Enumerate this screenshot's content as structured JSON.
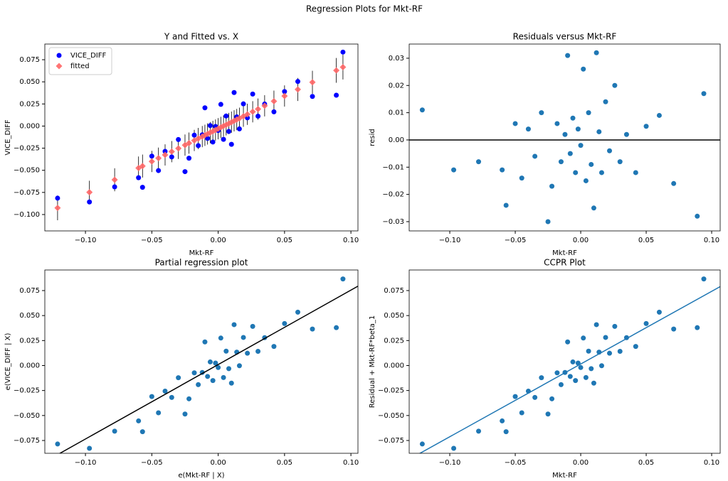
{
  "title": "Regression Plots for Mkt-RF",
  "chart_data": [
    {
      "type": "scatter",
      "title": "Y and Fitted vs. X",
      "x_label": "Mkt-RF",
      "y_label": "VICE_DIFF",
      "legend": "upper left",
      "xlim": [
        -0.1306,
        0.1053
      ],
      "ylim": [
        -0.1185,
        0.0927
      ],
      "xticks": [
        {
          "value": -0.1,
          "label": "−0.10"
        },
        {
          "value": -0.05,
          "label": "−0.05"
        },
        {
          "value": 0,
          "label": "0.00"
        },
        0.05,
        {
          "value": 0.1,
          "label": "0.10"
        }
      ],
      "yticks": [
        {
          "value": -0.1,
          "label": "−0.100"
        },
        {
          "value": -0.075,
          "label": "−0.075"
        },
        {
          "value": -0.05,
          "label": "−0.050"
        },
        {
          "value": -0.025,
          "label": "−0.025"
        },
        {
          "value": 0,
          "label": "0.000"
        },
        0.025,
        {
          "value": 0.05,
          "label": "0.050"
        },
        0.075
      ],
      "x": [
        -0.121,
        -0.097,
        -0.078,
        -0.06,
        -0.057,
        -0.05,
        -0.045,
        -0.04,
        -0.035,
        -0.03,
        -0.025,
        -0.022,
        -0.018,
        -0.015,
        -0.012,
        -0.01,
        -0.008,
        -0.006,
        -0.004,
        -0.002,
        0,
        0.002,
        0.004,
        0.006,
        0.008,
        0.01,
        0.012,
        0.014,
        0.016,
        0.019,
        0.022,
        0.026,
        0.03,
        0.035,
        0.042,
        0.05,
        0.06,
        0.071,
        0.089,
        0.094
      ],
      "series": [
        {
          "name": "VICE_DIFF",
          "color": "#0000ff",
          "marker": "circle",
          "values": [
            -0.0815,
            -0.0858,
            -0.0687,
            -0.0584,
            -0.0692,
            -0.034,
            -0.0503,
            -0.0286,
            -0.0349,
            -0.0152,
            -0.0515,
            -0.0363,
            -0.0103,
            -0.0221,
            -0.0099,
            0.0206,
            -0.0139,
            0.0006,
            -0.018,
            -0.0005,
            -0.005,
            0.0245,
            -0.015,
            0.0114,
            -0.0061,
            -0.0206,
            0.0379,
            0.0104,
            -0.0032,
            0.0251,
            0.0093,
            0.0362,
            0.0112,
            0.0249,
            0.0161,
            0.039,
            0.0504,
            0.0335,
            0.0349,
            0.0836
          ]
        },
        {
          "name": "fitted",
          "color": "#ff6666",
          "marker": "diamond",
          "values": [
            -0.0925,
            -0.0748,
            -0.0607,
            -0.0474,
            -0.0452,
            -0.04,
            -0.0363,
            -0.0326,
            -0.0289,
            -0.0252,
            -0.0215,
            -0.0193,
            -0.0163,
            -0.0141,
            -0.0119,
            -0.0104,
            -0.0089,
            -0.0074,
            -0.006,
            -0.0045,
            -0.003,
            -0.0015,
            0,
            0.0014,
            0.0029,
            0.0044,
            0.0059,
            0.0074,
            0.0088,
            0.0111,
            0.0133,
            0.0162,
            0.0192,
            0.0229,
            0.0281,
            0.034,
            0.0414,
            0.0495,
            0.0629,
            0.0666
          ],
          "errors": [
            0.014,
            0.013,
            0.013,
            0.013,
            0.013,
            0.012,
            0.012,
            0.012,
            0.012,
            0.012,
            0.012,
            0.012,
            0.012,
            0.012,
            0.012,
            0.012,
            0.012,
            0.012,
            0.012,
            0.012,
            0.012,
            0.012,
            0.012,
            0.012,
            0.012,
            0.012,
            0.012,
            0.012,
            0.012,
            0.012,
            0.012,
            0.012,
            0.012,
            0.012,
            0.012,
            0.012,
            0.013,
            0.013,
            0.014,
            0.014
          ]
        }
      ]
    },
    {
      "type": "scatter",
      "title": "Residuals versus Mkt-RF",
      "x_label": "Mkt-RF",
      "y_label": "resid",
      "hline": 0,
      "xlim": [
        -0.131,
        0.1065
      ],
      "ylim": [
        -0.0334,
        0.0352
      ],
      "xticks": [
        {
          "value": -0.1,
          "label": "−0.10"
        },
        {
          "value": -0.05,
          "label": "−0.05"
        },
        {
          "value": 0,
          "label": "0.00"
        },
        0.05,
        {
          "value": 0.1,
          "label": "0.10"
        }
      ],
      "yticks": [
        {
          "value": -0.03,
          "label": "−0.03"
        },
        {
          "value": -0.02,
          "label": "−0.02"
        },
        {
          "value": -0.01,
          "label": "−0.01"
        },
        {
          "value": 0,
          "label": "0.00"
        },
        0.01,
        0.02,
        0.03
      ],
      "x": [
        -0.121,
        -0.097,
        -0.078,
        -0.06,
        -0.057,
        -0.05,
        -0.045,
        -0.04,
        -0.035,
        -0.03,
        -0.025,
        -0.022,
        -0.018,
        -0.015,
        -0.012,
        -0.01,
        -0.008,
        -0.006,
        -0.004,
        -0.002,
        0,
        0.002,
        0.004,
        0.006,
        0.008,
        0.01,
        0.012,
        0.014,
        0.016,
        0.019,
        0.022,
        0.026,
        0.03,
        0.035,
        0.042,
        0.05,
        0.06,
        0.071,
        0.089,
        0.094
      ],
      "series": [
        {
          "color": "#1f77b4",
          "marker": "circle",
          "values": [
            0.011,
            -0.011,
            -0.008,
            -0.011,
            -0.024,
            0.006,
            -0.014,
            0.004,
            -0.006,
            0.01,
            -0.03,
            -0.017,
            0.006,
            -0.008,
            0.002,
            0.031,
            -0.005,
            0.008,
            -0.012,
            0.004,
            -0.002,
            0.026,
            -0.015,
            0.01,
            -0.009,
            -0.025,
            0.032,
            0.003,
            -0.012,
            0.014,
            -0.004,
            0.02,
            -0.008,
            0.002,
            -0.012,
            0.005,
            0.009,
            -0.016,
            -0.028,
            0.017
          ]
        }
      ]
    },
    {
      "type": "scatter",
      "title": "Partial regression plot",
      "x_label": "e(Mkt-RF | X)",
      "y_label": "e(VICE_DIFF | X)",
      "xlim": [
        -0.1306,
        0.1053
      ],
      "ylim": [
        -0.0878,
        0.0956
      ],
      "xticks": [
        {
          "value": -0.1,
          "label": "−0.10"
        },
        {
          "value": -0.05,
          "label": "−0.05"
        },
        {
          "value": 0,
          "label": "0.00"
        },
        0.05,
        {
          "value": 0.1,
          "label": "0.10"
        }
      ],
      "yticks": [
        {
          "value": -0.075,
          "label": "−0.075"
        },
        {
          "value": -0.05,
          "label": "−0.050"
        },
        {
          "value": -0.025,
          "label": "−0.025"
        },
        {
          "value": 0,
          "label": "0.000"
        },
        0.025,
        {
          "value": 0.05,
          "label": "0.050"
        },
        0.075
      ],
      "x": [
        -0.121,
        -0.097,
        -0.078,
        -0.06,
        -0.057,
        -0.05,
        -0.045,
        -0.04,
        -0.035,
        -0.03,
        -0.025,
        -0.022,
        -0.018,
        -0.015,
        -0.012,
        -0.01,
        -0.008,
        -0.006,
        -0.004,
        -0.002,
        0,
        0.002,
        0.004,
        0.006,
        0.008,
        0.01,
        0.012,
        0.014,
        0.016,
        0.019,
        0.022,
        0.026,
        0.03,
        0.035,
        0.042,
        0.05,
        0.06,
        0.071,
        0.089,
        0.094
      ],
      "series": [
        {
          "color": "#1f77b4",
          "marker": "circle",
          "values": [
            -0.0785,
            -0.0828,
            -0.0657,
            -0.0554,
            -0.0662,
            -0.031,
            -0.0473,
            -0.0256,
            -0.0319,
            -0.0122,
            -0.0485,
            -0.0333,
            -0.0073,
            -0.0191,
            -0.0069,
            0.0236,
            -0.0109,
            0.0036,
            -0.015,
            0.0025,
            -0.002,
            0.0275,
            -0.012,
            0.0144,
            -0.0031,
            -0.0176,
            0.0409,
            0.0134,
            -0.0002,
            0.0281,
            0.0123,
            0.0392,
            0.0142,
            0.0279,
            0.0191,
            0.042,
            0.0534,
            0.0365,
            0.0379,
            0.0866
          ]
        }
      ],
      "fit_line": {
        "color": "#000000",
        "x": [
          -0.1306,
          0.1053
        ],
        "values": [
          -0.0963,
          0.0794
        ]
      }
    },
    {
      "type": "scatter",
      "title": "CCPR Plot",
      "x_label": "Mkt-RF",
      "y_label": "Residual + Mkt-RF*beta_1",
      "xlim": [
        -0.131,
        0.1065
      ],
      "ylim": [
        -0.0878,
        0.0956
      ],
      "xticks": [
        {
          "value": -0.1,
          "label": "−0.10"
        },
        {
          "value": -0.05,
          "label": "−0.05"
        },
        {
          "value": 0,
          "label": "0.00"
        },
        0.05,
        {
          "value": 0.1,
          "label": "0.10"
        }
      ],
      "yticks": [
        {
          "value": -0.075,
          "label": "−0.075"
        },
        {
          "value": -0.05,
          "label": "−0.050"
        },
        {
          "value": -0.025,
          "label": "−0.025"
        },
        {
          "value": 0,
          "label": "0.000"
        },
        0.025,
        {
          "value": 0.05,
          "label": "0.050"
        },
        0.075
      ],
      "x": [
        -0.121,
        -0.097,
        -0.078,
        -0.06,
        -0.057,
        -0.05,
        -0.045,
        -0.04,
        -0.035,
        -0.03,
        -0.025,
        -0.022,
        -0.018,
        -0.015,
        -0.012,
        -0.01,
        -0.008,
        -0.006,
        -0.004,
        -0.002,
        0,
        0.002,
        0.004,
        0.006,
        0.008,
        0.01,
        0.012,
        0.014,
        0.016,
        0.019,
        0.022,
        0.026,
        0.03,
        0.035,
        0.042,
        0.05,
        0.06,
        0.071,
        0.089,
        0.094
      ],
      "series": [
        {
          "color": "#1f77b4",
          "marker": "circle",
          "values": [
            -0.0785,
            -0.0828,
            -0.0657,
            -0.0554,
            -0.0662,
            -0.031,
            -0.0473,
            -0.0256,
            -0.0319,
            -0.0122,
            -0.0485,
            -0.0333,
            -0.0073,
            -0.0191,
            -0.0069,
            0.0236,
            -0.0109,
            0.0036,
            -0.015,
            0.0025,
            -0.002,
            0.0275,
            -0.012,
            0.0144,
            -0.0031,
            -0.0176,
            0.0409,
            0.0134,
            -0.0002,
            0.0281,
            0.0123,
            0.0392,
            0.0142,
            0.0279,
            0.0191,
            0.042,
            0.0534,
            0.0365,
            0.0379,
            0.0866
          ]
        }
      ],
      "fit_line": {
        "color": "#1f77b4",
        "x": [
          -0.131,
          0.1065
        ],
        "values": [
          -0.0938,
          0.079
        ]
      }
    }
  ]
}
